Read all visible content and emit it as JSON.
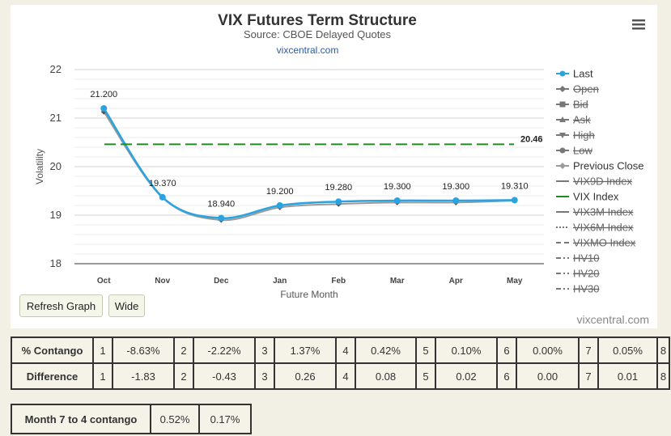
{
  "chart_data": {
    "type": "line",
    "title": "VIX Futures Term Structure",
    "subtitle": "Source: CBOE Delayed Quotes",
    "site_link": "vixcentral.com",
    "credit": "vixcentral.com",
    "xlabel": "Future Month",
    "ylabel": "Volatility",
    "categories": [
      "Oct",
      "Nov",
      "Dec",
      "Jan",
      "Feb",
      "Mar",
      "Apr",
      "May"
    ],
    "ylim": [
      18,
      22
    ],
    "yticks": [
      "18",
      "19",
      "20",
      "21",
      "22"
    ],
    "grid": true,
    "legend_position": "right",
    "series": [
      {
        "name": "Last",
        "color": "#2aa3e0",
        "values": [
          21.2,
          19.37,
          18.94,
          19.2,
          19.28,
          19.3,
          19.3,
          19.31
        ],
        "labels": [
          "21.200",
          "19.370",
          "18.940",
          "19.200",
          "19.280",
          "19.300",
          "19.300",
          "19.310"
        ]
      },
      {
        "name": "Previous Close",
        "color": "#9b9b9b",
        "values": [
          21.13,
          19.36,
          18.9,
          19.16,
          19.23,
          19.26,
          19.26,
          19.3
        ]
      },
      {
        "name": "VIX Index",
        "color": "#1e8c1e",
        "values": [
          20.46,
          20.46,
          20.46,
          20.46,
          20.46,
          20.46,
          20.46,
          20.46
        ],
        "end_label": "20.46"
      }
    ],
    "legend": [
      {
        "label": "Last",
        "active": true,
        "marker": "circle",
        "color": "#2aa3e0",
        "dash": "solid"
      },
      {
        "label": "Open",
        "active": false,
        "marker": "diamond",
        "color": "#666",
        "dash": "solid"
      },
      {
        "label": "Bid",
        "active": false,
        "marker": "square",
        "color": "#666",
        "dash": "solid"
      },
      {
        "label": "Ask",
        "active": false,
        "marker": "triangle",
        "color": "#666",
        "dash": "solid"
      },
      {
        "label": "High",
        "active": false,
        "marker": "triangle-down",
        "color": "#666",
        "dash": "solid"
      },
      {
        "label": "Low",
        "active": false,
        "marker": "circle",
        "color": "#666",
        "dash": "solid"
      },
      {
        "label": "Previous Close",
        "active": true,
        "marker": "diamond",
        "color": "#9b9b9b",
        "dash": "solid"
      },
      {
        "label": "VIX9D Index",
        "active": false,
        "marker": "none",
        "color": "#666",
        "dash": "solid"
      },
      {
        "label": "VIX Index",
        "active": true,
        "marker": "none",
        "color": "#1e8c1e",
        "dash": "solid"
      },
      {
        "label": "VIX3M Index",
        "active": false,
        "marker": "none",
        "color": "#666",
        "dash": "solid"
      },
      {
        "label": "VIX6M Index",
        "active": false,
        "marker": "none",
        "color": "#666",
        "dash": "dot"
      },
      {
        "label": "VIXMO Index",
        "active": false,
        "marker": "none",
        "color": "#666",
        "dash": "dash"
      },
      {
        "label": "HV10",
        "active": false,
        "marker": "none",
        "color": "#666",
        "dash": "dashdot"
      },
      {
        "label": "HV20",
        "active": false,
        "marker": "none",
        "color": "#666",
        "dash": "dashdot"
      },
      {
        "label": "HV30",
        "active": false,
        "marker": "none",
        "color": "#666",
        "dash": "dashdot"
      }
    ]
  },
  "buttons": {
    "refresh": "Refresh Graph",
    "wide": "Wide"
  },
  "stats_table": {
    "rows": [
      {
        "label": "% Contango",
        "cells": [
          "1",
          "-8.63%",
          "2",
          "-2.22%",
          "3",
          "1.37%",
          "4",
          "0.42%",
          "5",
          "0.10%",
          "6",
          "0.00%",
          "7",
          "0.05%",
          "8"
        ]
      },
      {
        "label": "Difference",
        "cells": [
          "1",
          "-1.83",
          "2",
          "-0.43",
          "3",
          "0.26",
          "4",
          "0.08",
          "5",
          "0.02",
          "6",
          "0.00",
          "7",
          "0.01",
          "8"
        ]
      }
    ]
  },
  "month_7_to_4": {
    "label": "Month 7 to 4 contango",
    "values": [
      "0.52%",
      "0.17%"
    ]
  }
}
